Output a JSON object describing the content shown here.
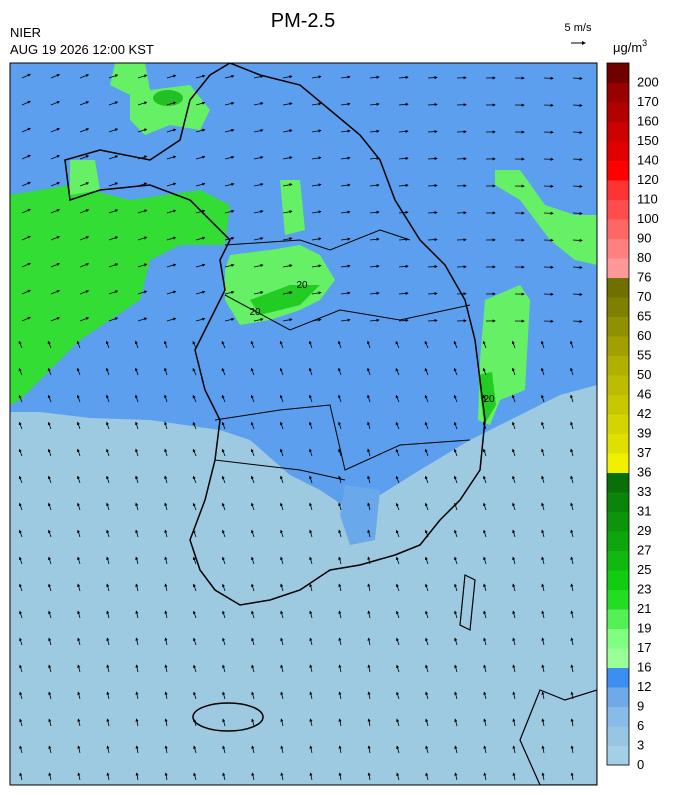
{
  "header": {
    "title": "PM-2.5",
    "agency": "NIER",
    "timestamp": "AUG 19 2026 12:00 KST"
  },
  "wind_scale": {
    "label": "5 m/s"
  },
  "colorbar": {
    "unit": "μg/m",
    "unit_exponent": "3",
    "levels": [
      {
        "label": 0,
        "color": "#a3d0e6"
      },
      {
        "label": 3,
        "color": "#97c6e4"
      },
      {
        "label": 6,
        "color": "#88bbe8"
      },
      {
        "label": 9,
        "color": "#6fa9ea"
      },
      {
        "label": 12,
        "color": "#3c8ef0"
      },
      {
        "label": 16,
        "color": "#99ff99"
      },
      {
        "label": 17,
        "color": "#80ff80"
      },
      {
        "label": 19,
        "color": "#55f055"
      },
      {
        "label": 21,
        "color": "#22dd22"
      },
      {
        "label": 23,
        "color": "#11cc11"
      },
      {
        "label": 25,
        "color": "#10b810"
      },
      {
        "label": 27,
        "color": "#0ea50e"
      },
      {
        "label": 29,
        "color": "#0c950c"
      },
      {
        "label": 31,
        "color": "#0a850a"
      },
      {
        "label": 33,
        "color": "#087008"
      },
      {
        "label": 36,
        "color": "#f0f000"
      },
      {
        "label": 37,
        "color": "#e0e000"
      },
      {
        "label": 39,
        "color": "#d4d400"
      },
      {
        "label": 42,
        "color": "#c8c800"
      },
      {
        "label": 46,
        "color": "#bcbc00"
      },
      {
        "label": 50,
        "color": "#b0b000"
      },
      {
        "label": 55,
        "color": "#a0a000"
      },
      {
        "label": 60,
        "color": "#909000"
      },
      {
        "label": 65,
        "color": "#808000"
      },
      {
        "label": 70,
        "color": "#707000"
      },
      {
        "label": 76,
        "color": "#ff9999"
      },
      {
        "label": 80,
        "color": "#ff8080"
      },
      {
        "label": 90,
        "color": "#ff6666"
      },
      {
        "label": 100,
        "color": "#ff4d4d"
      },
      {
        "label": 110,
        "color": "#ff3333"
      },
      {
        "label": 120,
        "color": "#ff0000"
      },
      {
        "label": 140,
        "color": "#e00000"
      },
      {
        "label": 150,
        "color": "#cc0000"
      },
      {
        "label": 160,
        "color": "#b00000"
      },
      {
        "label": 170,
        "color": "#990000"
      },
      {
        "label": 200,
        "color": "#700000"
      }
    ]
  },
  "map": {
    "contour_labels": [
      20,
      20,
      20
    ]
  }
}
